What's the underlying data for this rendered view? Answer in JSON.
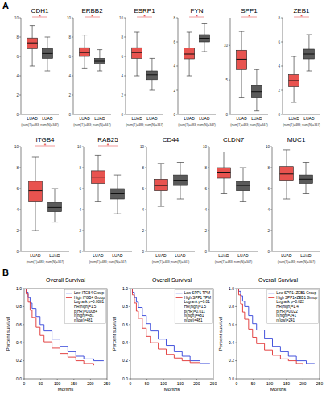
{
  "panel_labels": [
    "A",
    "B"
  ],
  "chart_data": [
    {
      "type": "box",
      "title": "CDH1",
      "categories": [
        "LUAD",
        "LUAD"
      ],
      "x_label": "(num(T)=483; num(N)=347)",
      "ylim": [
        0,
        10
      ],
      "yticks": [
        0,
        2,
        4,
        6,
        8,
        10
      ],
      "annotations": [
        "*"
      ],
      "boxes": [
        {
          "color": "#e8534f",
          "min": 5,
          "q1": 6.8,
          "median": 7.4,
          "q3": 7.9,
          "max": 9.2
        },
        {
          "color": "#5a5a5a",
          "min": 4.5,
          "q1": 5.8,
          "median": 6.3,
          "q3": 6.8,
          "max": 8
        }
      ]
    },
    {
      "type": "box",
      "title": "ERBB2",
      "categories": [
        "LUAD",
        "LUAD"
      ],
      "x_label": "(num(T)=483; num(N)=347)",
      "ylim": [
        0,
        10
      ],
      "yticks": [
        0,
        2,
        4,
        6,
        8,
        10
      ],
      "annotations": [
        "*"
      ],
      "boxes": [
        {
          "color": "#e8534f",
          "min": 4.8,
          "q1": 6,
          "median": 6.4,
          "q3": 6.9,
          "max": 8.2
        },
        {
          "color": "#5a5a5a",
          "min": 4.5,
          "q1": 5.2,
          "median": 5.5,
          "q3": 5.8,
          "max": 6.7
        }
      ]
    },
    {
      "type": "box",
      "title": "ESRP1",
      "categories": [
        "LUAD",
        "LUAD"
      ],
      "x_label": "(num(T)=483; num(N)=347)",
      "ylim": [
        0,
        10
      ],
      "yticks": [
        0,
        2,
        4,
        6,
        8,
        10
      ],
      "annotations": [
        "*"
      ],
      "boxes": [
        {
          "color": "#e8534f",
          "min": 4,
          "q1": 5.8,
          "median": 6.4,
          "q3": 6.9,
          "max": 8.5
        },
        {
          "color": "#5a5a5a",
          "min": 2.5,
          "q1": 3.6,
          "median": 4.1,
          "q3": 4.5,
          "max": 5.8
        }
      ]
    },
    {
      "type": "box",
      "title": "FYN",
      "categories": [
        "LUAD",
        "LUAD"
      ],
      "x_label": "(num(T)=483; num(N)=347)",
      "ylim": [
        0,
        8
      ],
      "yticks": [
        0,
        2,
        4,
        6,
        8
      ],
      "annotations": [
        "*"
      ],
      "boxes": [
        {
          "color": "#e8534f",
          "min": 3.2,
          "q1": 4.6,
          "median": 5,
          "q3": 5.5,
          "max": 6.8
        },
        {
          "color": "#5a5a5a",
          "min": 5.2,
          "q1": 6,
          "median": 6.3,
          "q3": 6.6,
          "max": 7.5
        }
      ]
    },
    {
      "type": "box",
      "title": "SPP1",
      "categories": [
        "LUAD",
        "LUAD"
      ],
      "x_label": "(num(T)=483; num(N)=347)",
      "ylim": [
        0,
        14
      ],
      "yticks": [
        0,
        5,
        10
      ],
      "annotations": [
        "*"
      ],
      "boxes": [
        {
          "color": "#e8534f",
          "min": 2.5,
          "q1": 6.5,
          "median": 8,
          "q3": 9.3,
          "max": 12
        },
        {
          "color": "#5a5a5a",
          "min": 0.5,
          "q1": 2.5,
          "median": 3.3,
          "q3": 4.2,
          "max": 6.5
        }
      ]
    },
    {
      "type": "box",
      "title": "ZEB1",
      "categories": [
        "LUAD",
        "LUAD"
      ],
      "x_label": "(num(T)=483; num(N)=347)",
      "ylim": [
        0,
        8
      ],
      "yticks": [
        0,
        2,
        4,
        6,
        8
      ],
      "annotations": [
        "*"
      ],
      "boxes": [
        {
          "color": "#e8534f",
          "min": 1,
          "q1": 2.3,
          "median": 2.8,
          "q3": 3.3,
          "max": 4.8
        },
        {
          "color": "#5a5a5a",
          "min": 3.6,
          "q1": 4.6,
          "median": 5,
          "q3": 5.4,
          "max": 6.6
        }
      ]
    },
    {
      "type": "box",
      "title": "ITGB4",
      "categories": [
        "LUAD",
        "LUAD"
      ],
      "x_label": "(num(T)=483; num(N)=347)",
      "ylim": [
        0,
        10
      ],
      "yticks": [
        0,
        2,
        4,
        6,
        8,
        10
      ],
      "annotations": [
        "*"
      ],
      "boxes": [
        {
          "color": "#e8534f",
          "min": 2,
          "q1": 4.8,
          "median": 5.8,
          "q3": 6.7,
          "max": 9
        },
        {
          "color": "#5a5a5a",
          "min": 2.8,
          "q1": 3.8,
          "median": 4.2,
          "q3": 4.7,
          "max": 6
        }
      ]
    },
    {
      "type": "box",
      "title": "RAB25",
      "categories": [
        "LUAD",
        "LUAD"
      ],
      "x_label": "(num(T)=483; num(N)=347)",
      "ylim": [
        0,
        10
      ],
      "yticks": [
        0,
        2,
        4,
        6,
        8,
        10
      ],
      "annotations": [
        "*"
      ],
      "boxes": [
        {
          "color": "#e8534f",
          "min": 4.8,
          "q1": 6.5,
          "median": 7.1,
          "q3": 7.7,
          "max": 9.2
        },
        {
          "color": "#5a5a5a",
          "min": 3.6,
          "q1": 5,
          "median": 5.5,
          "q3": 6,
          "max": 7.3
        }
      ]
    },
    {
      "type": "box",
      "title": "CD44",
      "categories": [
        "LUAD",
        "LUAD"
      ],
      "x_label": "(num(T)=483; num(N)=347)",
      "ylim": [
        0,
        10
      ],
      "yticks": [
        0,
        2,
        4,
        6,
        8,
        10
      ],
      "boxes": [
        {
          "color": "#e8534f",
          "min": 4.3,
          "q1": 5.8,
          "median": 6.3,
          "q3": 6.9,
          "max": 8.4
        },
        {
          "color": "#5a5a5a",
          "min": 5,
          "q1": 6.3,
          "median": 6.8,
          "q3": 7.3,
          "max": 8.5
        }
      ]
    },
    {
      "type": "box",
      "title": "CLDN7",
      "categories": [
        "LUAD",
        "LUAD"
      ],
      "x_label": "(num(T)=483; num(N)=347)",
      "ylim": [
        0,
        10
      ],
      "yticks": [
        0,
        2,
        4,
        6,
        8,
        10
      ],
      "boxes": [
        {
          "color": "#e8534f",
          "min": 5.5,
          "q1": 7,
          "median": 7.5,
          "q3": 8,
          "max": 9.5
        },
        {
          "color": "#5a5a5a",
          "min": 4.8,
          "q1": 5.8,
          "median": 6.3,
          "q3": 6.7,
          "max": 8
        }
      ]
    },
    {
      "type": "box",
      "title": "MUC1",
      "categories": [
        "LUAD",
        "LUAD"
      ],
      "x_label": "(num(T)=483; num(N)=347)",
      "ylim": [
        0,
        10
      ],
      "yticks": [
        0,
        2,
        4,
        6,
        8,
        10
      ],
      "boxes": [
        {
          "color": "#e8534f",
          "min": 5,
          "q1": 6.8,
          "median": 7.4,
          "q3": 8.1,
          "max": 9.7
        },
        {
          "color": "#5a5a5a",
          "min": 5.5,
          "q1": 6.5,
          "median": 6.9,
          "q3": 7.3,
          "max": 8.5
        }
      ]
    },
    {
      "type": "line",
      "title": "Overall Survival",
      "x_label": "Months",
      "y_label": "Percent survival",
      "line_style": "step",
      "legend": "top-right",
      "xlim": [
        0,
        250
      ],
      "xticks": [
        0,
        50,
        100,
        150,
        200,
        250
      ],
      "ylim": [
        0,
        1
      ],
      "yticks": [
        {
          "value": 0,
          "label": "0.0"
        },
        {
          "value": 0.2,
          "label": "0.2"
        },
        {
          "value": 0.4,
          "label": "0.4"
        },
        {
          "value": 0.6,
          "label": "0.6"
        },
        {
          "value": 0.8,
          "label": "0.8"
        },
        {
          "value": 1,
          "label": "1.0"
        }
      ],
      "annotations": [
        "Logrank p=0.0081",
        "HR(high)=1.5",
        "p(HR)=0.0084",
        "n(high)=481",
        "n(low)=481"
      ],
      "series": [
        {
          "name": "Low ITGB4 Group",
          "color": "#2f3fd8",
          "x": [
            0,
            6,
            12,
            18,
            24,
            36,
            48,
            60,
            84,
            108,
            132,
            156,
            180,
            210,
            240
          ],
          "values": [
            1,
            0.96,
            0.9,
            0.84,
            0.78,
            0.69,
            0.6,
            0.53,
            0.44,
            0.36,
            0.3,
            0.25,
            0.22,
            0.2,
            0.2
          ]
        },
        {
          "name": "High ITGB4 Group",
          "color": "#e03030",
          "x": [
            0,
            6,
            12,
            18,
            24,
            36,
            48,
            60,
            84,
            108,
            132,
            156,
            180,
            210
          ],
          "values": [
            1,
            0.94,
            0.85,
            0.76,
            0.68,
            0.57,
            0.48,
            0.41,
            0.34,
            0.28,
            0.24,
            0.2,
            0.17,
            0.15
          ]
        }
      ]
    },
    {
      "type": "line",
      "title": "Overall Survival",
      "x_label": "Months",
      "y_label": "Percent survival",
      "line_style": "step",
      "legend": "top-right",
      "xlim": [
        0,
        250
      ],
      "xticks": [
        0,
        50,
        100,
        150,
        200,
        250
      ],
      "ylim": [
        0,
        1
      ],
      "yticks": [
        {
          "value": 0,
          "label": "0.0"
        },
        {
          "value": 0.2,
          "label": "0.2"
        },
        {
          "value": 0.4,
          "label": "0.4"
        },
        {
          "value": 0.6,
          "label": "0.6"
        },
        {
          "value": 0.8,
          "label": "0.8"
        },
        {
          "value": 1,
          "label": "1.0"
        }
      ],
      "annotations": [
        "Logrank p=0.01",
        "HR(high)=1.5",
        "p(HR)=0.011",
        "n(high)=481",
        "n(low)=481"
      ],
      "series": [
        {
          "name": "Low SPP1 TPM",
          "color": "#2f3fd8",
          "x": [
            0,
            6,
            12,
            18,
            24,
            36,
            48,
            60,
            84,
            108,
            132,
            156,
            180,
            210,
            240
          ],
          "values": [
            1,
            0.96,
            0.9,
            0.85,
            0.79,
            0.7,
            0.61,
            0.53,
            0.44,
            0.37,
            0.3,
            0.25,
            0.2,
            0.17,
            0.17
          ]
        },
        {
          "name": "High SPP1 TPM",
          "color": "#e03030",
          "x": [
            0,
            6,
            12,
            18,
            24,
            36,
            48,
            60,
            84,
            108,
            132,
            156,
            180,
            210
          ],
          "values": [
            1,
            0.93,
            0.84,
            0.75,
            0.67,
            0.56,
            0.47,
            0.4,
            0.33,
            0.27,
            0.23,
            0.2,
            0.18,
            0.18
          ]
        }
      ]
    },
    {
      "type": "line",
      "title": "Overall Survival",
      "x_label": "Months",
      "y_label": "Percent survival",
      "line_style": "step",
      "legend": "top-right",
      "xlim": [
        0,
        250
      ],
      "xticks": [
        0,
        50,
        100,
        150,
        200,
        250
      ],
      "ylim": [
        0,
        1
      ],
      "yticks": [
        {
          "value": 0,
          "label": "0.0"
        },
        {
          "value": 0.2,
          "label": "0.2"
        },
        {
          "value": 0.4,
          "label": "0.4"
        },
        {
          "value": 0.6,
          "label": "0.6"
        },
        {
          "value": 0.8,
          "label": "0.8"
        },
        {
          "value": 1,
          "label": "1.0"
        }
      ],
      "annotations": [
        "Logrank p=0.022",
        "HR(high)=1.4",
        "p(HR)=0.022",
        "n(high)=241",
        "n(low)=241"
      ],
      "series": [
        {
          "name": "Low SPP1+ZEB1 Group",
          "color": "#2f3fd8",
          "x": [
            0,
            6,
            12,
            18,
            24,
            36,
            48,
            60,
            84,
            108,
            132,
            156,
            180,
            210,
            235
          ],
          "values": [
            1,
            0.97,
            0.92,
            0.86,
            0.8,
            0.7,
            0.61,
            0.54,
            0.45,
            0.36,
            0.3,
            0.25,
            0.2,
            0.17,
            0.17
          ]
        },
        {
          "name": "High SPP1+ZEB1 Group",
          "color": "#e03030",
          "x": [
            0,
            6,
            12,
            18,
            24,
            36,
            48,
            60,
            84,
            108,
            132,
            156,
            180,
            200
          ],
          "values": [
            1,
            0.93,
            0.83,
            0.74,
            0.66,
            0.55,
            0.46,
            0.39,
            0.32,
            0.26,
            0.22,
            0.2,
            0.17,
            0.15
          ]
        }
      ]
    }
  ]
}
